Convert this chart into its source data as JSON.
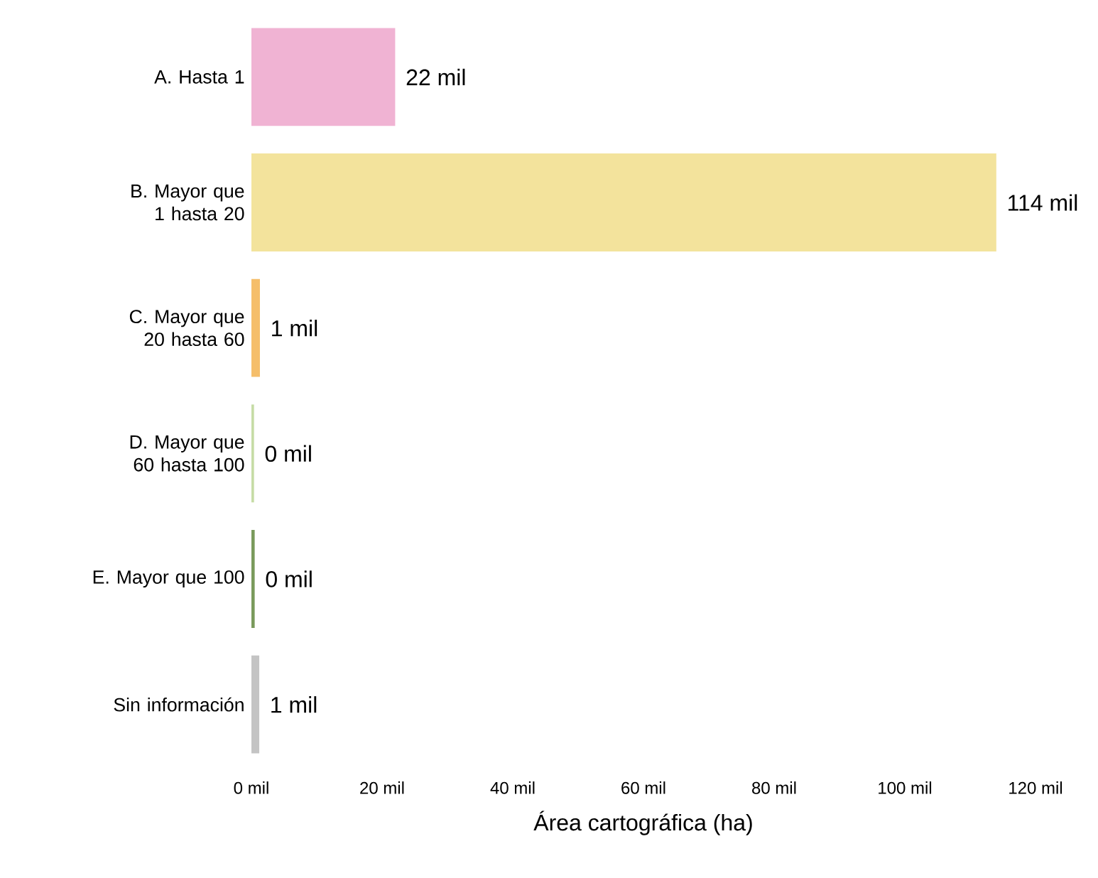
{
  "chart_data": {
    "type": "bar",
    "orientation": "horizontal",
    "xlabel": "Área cartográfica (ha)",
    "categories": [
      "A. Hasta 1",
      "B. Mayor que 1 hasta 20",
      "C. Mayor que 20 hasta 60",
      "D. Mayor que 60 hasta 100",
      "E. Mayor que 100",
      "Sin información"
    ],
    "values": [
      22,
      114,
      1.3,
      0.4,
      0.5,
      1.2
    ],
    "colors": [
      "#f0b3d3",
      "#f3e39c",
      "#f5be6a",
      "#c6dca6",
      "#7a9a5c",
      "#c4c4c4"
    ],
    "value_labels": [
      "22 mil",
      "114 mil",
      "1 mil",
      "0 mil",
      "0 mil",
      "1 mil"
    ],
    "xlim": [
      0,
      120
    ],
    "xticks": [
      {
        "value": 0,
        "label": "0 mil"
      },
      {
        "value": 20,
        "label": "20 mil"
      },
      {
        "value": 40,
        "label": "40 mil"
      },
      {
        "value": 60,
        "label": "60 mil"
      },
      {
        "value": 80,
        "label": "80 mil"
      },
      {
        "value": 100,
        "label": "100 mil"
      },
      {
        "value": 120,
        "label": "120 mil"
      }
    ]
  }
}
